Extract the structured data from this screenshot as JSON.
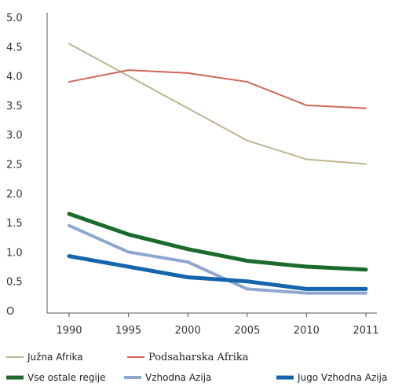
{
  "chart_data": {
    "type": "line",
    "title": "",
    "xlabel": "",
    "ylabel": "",
    "ylim": [
      0,
      5
    ],
    "yticks": [
      "O",
      "0.5",
      "1.0",
      "1.5",
      "2.0",
      "2.5",
      "3.0",
      "3.5",
      "4.0",
      "4.5",
      "5.0"
    ],
    "ytick_values": [
      0,
      0.5,
      1,
      1.5,
      2,
      2.5,
      3,
      3.5,
      4,
      4.5,
      5
    ],
    "x": [
      "1990",
      "1995",
      "2000",
      "2005",
      "2010",
      "2011"
    ],
    "grid": false,
    "legend_position": "bottom",
    "series": [
      {
        "name": "Južna Afrika",
        "color": "#bdb590",
        "values": [
          4.55,
          4.0,
          3.45,
          2.9,
          2.58,
          2.5
        ]
      },
      {
        "name": "Podsaharska Afrika",
        "color": "#d0675a",
        "values": [
          3.9,
          4.1,
          4.05,
          3.9,
          3.5,
          3.45
        ]
      },
      {
        "name": "Vse ostale regije",
        "color": "#1d6a2d",
        "values": [
          1.65,
          1.3,
          1.05,
          0.85,
          0.75,
          0.7
        ]
      },
      {
        "name": "Vzhodna Azija",
        "color": "#8ea7cf",
        "values": [
          1.45,
          1.0,
          0.83,
          0.37,
          0.3,
          0.3
        ]
      },
      {
        "name": "Jugo Vzhodna Azija",
        "color": "#1565ad",
        "values": [
          0.93,
          0.75,
          0.57,
          0.5,
          0.37,
          0.37
        ]
      }
    ]
  }
}
